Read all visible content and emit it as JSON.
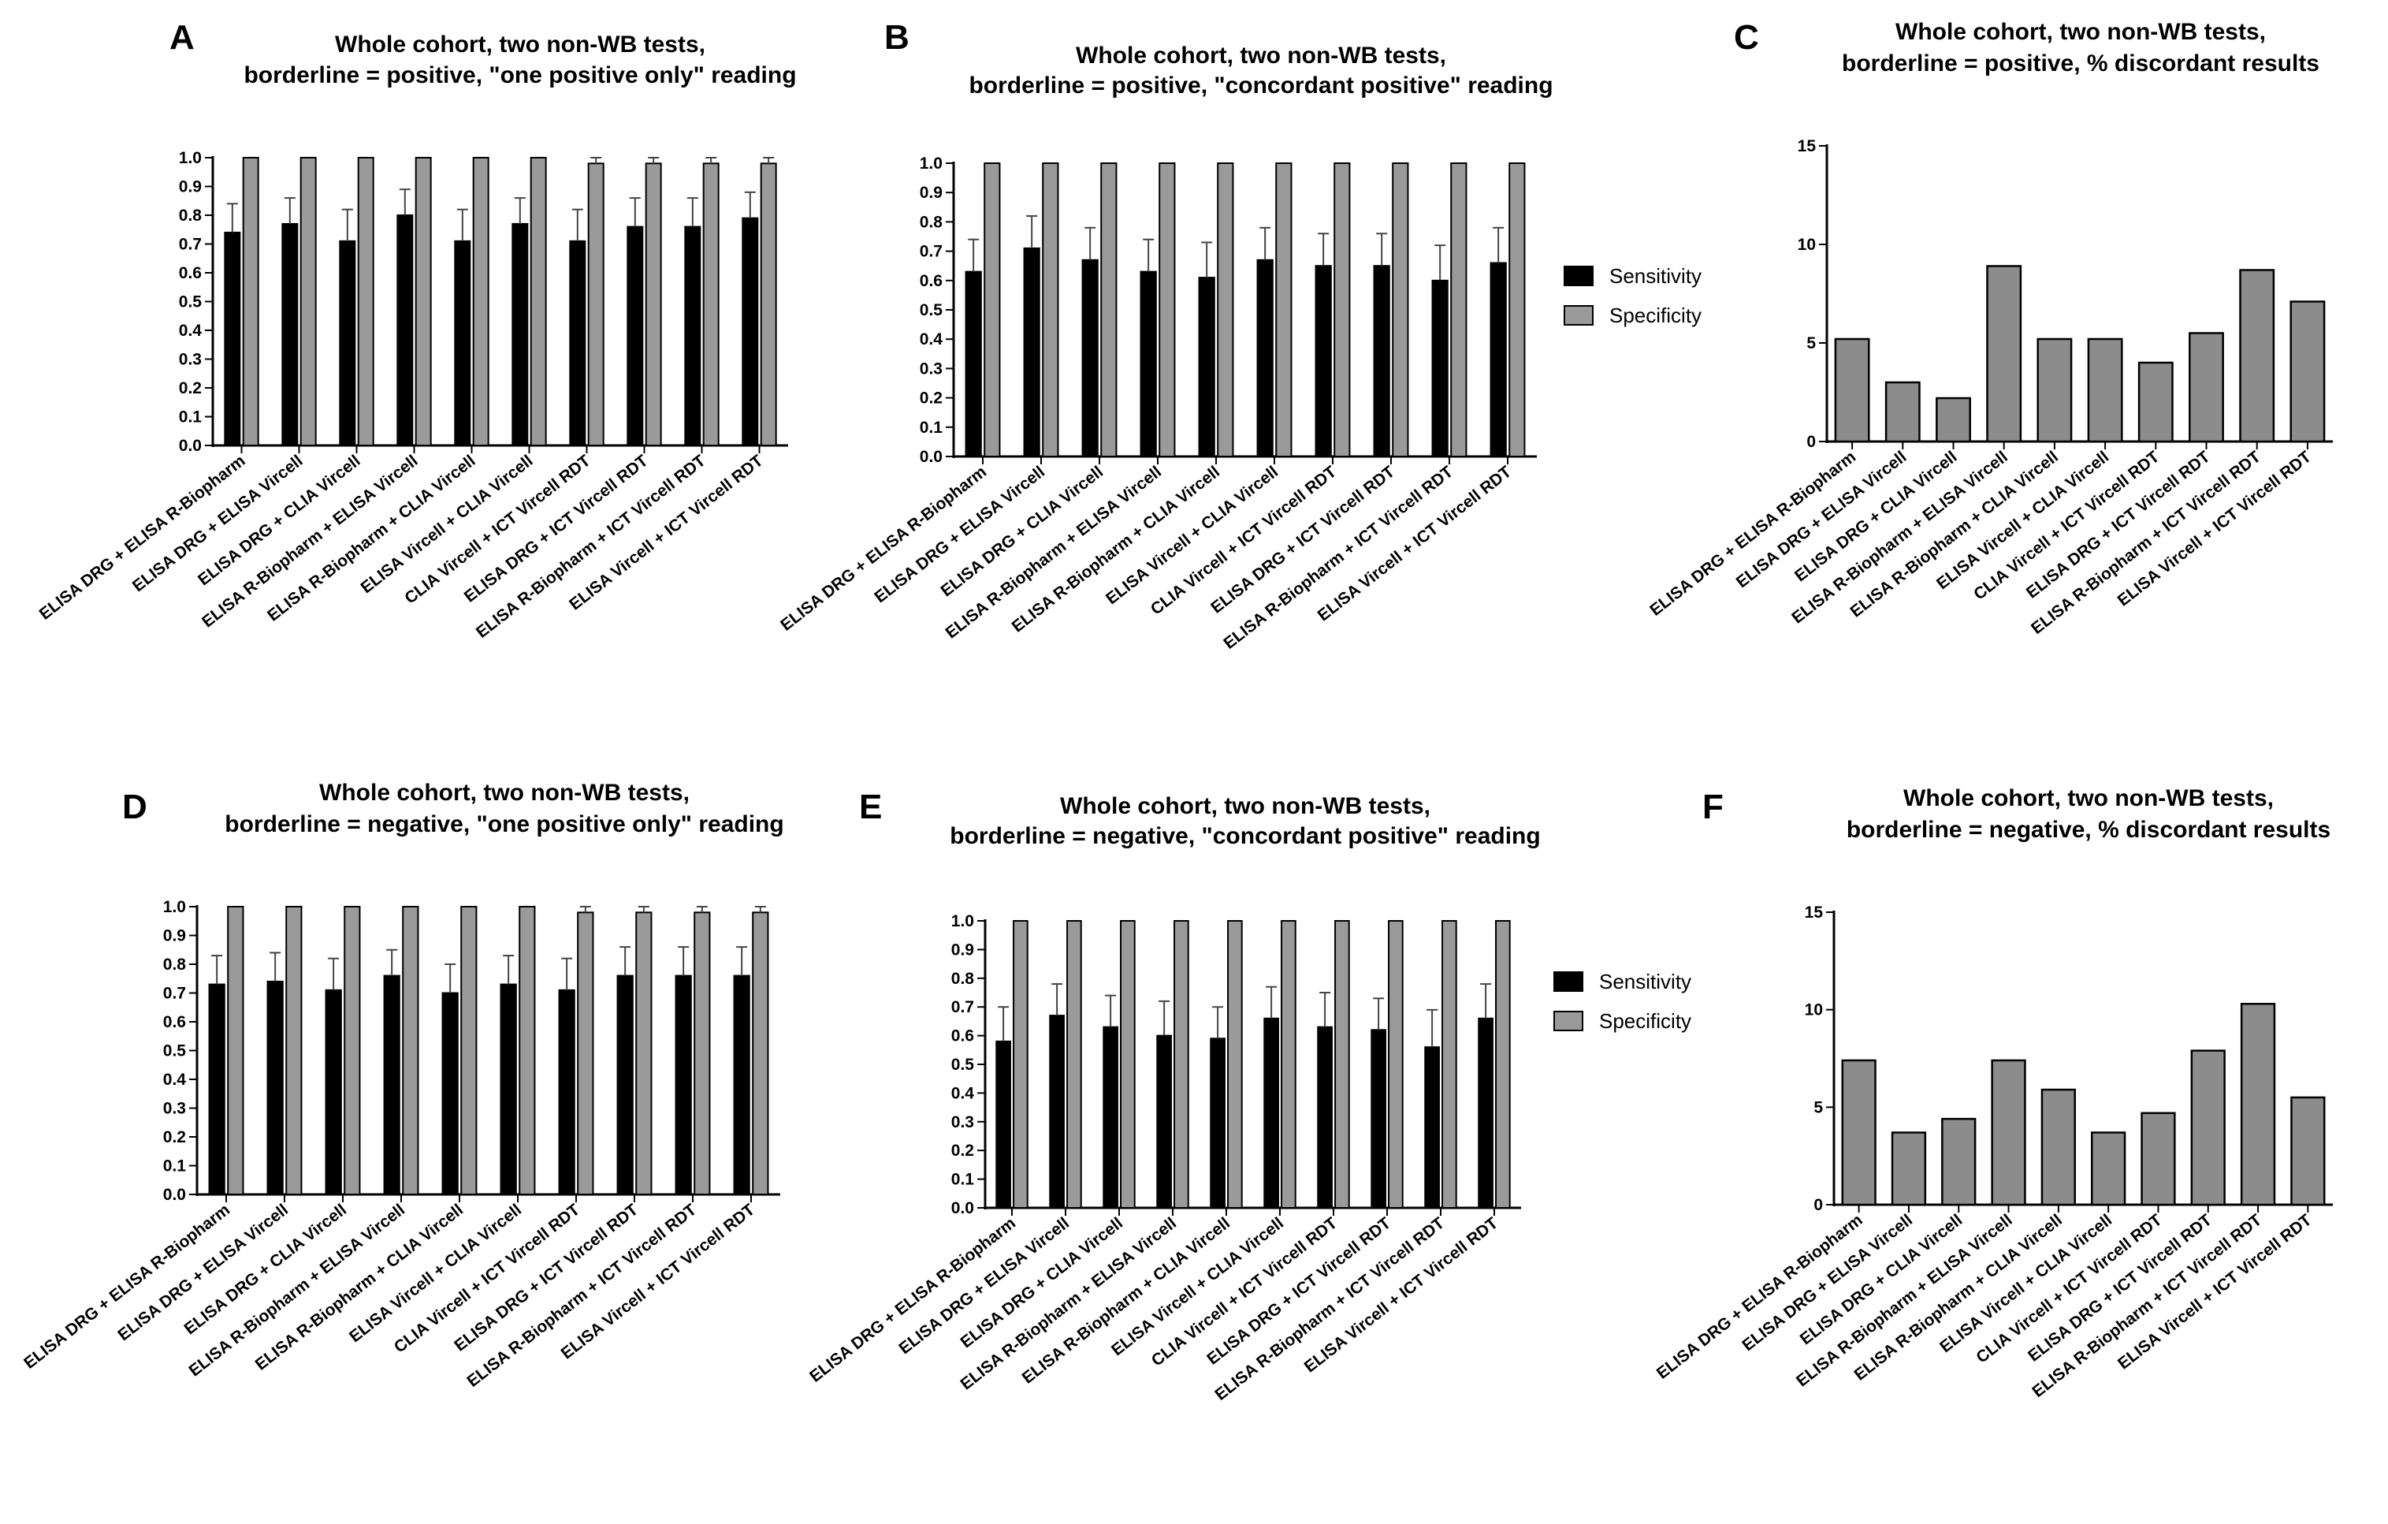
{
  "categories": [
    "ELISA DRG + ELISA R-Biopharm",
    "ELISA DRG + ELISA Vircell",
    "ELISA DRG + CLIA Vircell",
    "ELISA R-Biopharm + ELISA Vircell",
    "ELISA R-Biopharm + CLIA Vircell",
    "ELISA Vircell + CLIA Vircell",
    "CLIA Vircell + ICT Vircell RDT",
    "ELISA DRG + ICT Vircell RDT",
    "ELISA R-Biopharm + ICT Vircell RDT",
    "ELISA Vircell + ICT Vircell RDT"
  ],
  "legend": {
    "sensitivity": "Sensitivity",
    "specificity": "Specificity",
    "sensitivity_color": "#000000",
    "specificity_color": "#9a9a9a"
  },
  "colors": {
    "bar_gray": "#8c8c8c",
    "bar_stroke": "#000000"
  },
  "chart_data": [
    {
      "id": "A",
      "type": "bar",
      "letter": "A",
      "title_lines": [
        "Whole cohort, two non-WB tests,",
        "borderline = positive, \"one positive only\" reading"
      ],
      "ylim": [
        0,
        1.0
      ],
      "yticks": [
        "0.0",
        "0.1",
        "0.2",
        "0.3",
        "0.4",
        "0.5",
        "0.6",
        "0.7",
        "0.8",
        "0.9",
        "1.0"
      ],
      "series": [
        {
          "name": "Sensitivity",
          "values": [
            0.74,
            0.77,
            0.71,
            0.8,
            0.71,
            0.77,
            0.71,
            0.76,
            0.76,
            0.79
          ],
          "error": [
            0.1,
            0.09,
            0.11,
            0.09,
            0.11,
            0.09,
            0.11,
            0.1,
            0.1,
            0.09
          ]
        },
        {
          "name": "Specificity",
          "values": [
            1.0,
            1.0,
            1.0,
            1.0,
            1.0,
            1.0,
            0.98,
            0.98,
            0.98,
            0.98
          ],
          "error": [
            0,
            0,
            0,
            0,
            0,
            0,
            0.02,
            0.02,
            0.02,
            0.02
          ]
        }
      ]
    },
    {
      "id": "B",
      "type": "bar",
      "letter": "B",
      "title_lines": [
        "Whole cohort, two non-WB tests,",
        "borderline = positive, \"concordant positive\" reading"
      ],
      "ylim": [
        0,
        1.0
      ],
      "yticks": [
        "0.0",
        "0.1",
        "0.2",
        "0.3",
        "0.4",
        "0.5",
        "0.6",
        "0.7",
        "0.8",
        "0.9",
        "1.0"
      ],
      "series": [
        {
          "name": "Sensitivity",
          "values": [
            0.63,
            0.71,
            0.67,
            0.63,
            0.61,
            0.67,
            0.65,
            0.65,
            0.6,
            0.66
          ],
          "error": [
            0.11,
            0.11,
            0.11,
            0.11,
            0.12,
            0.11,
            0.11,
            0.11,
            0.12,
            0.12
          ]
        },
        {
          "name": "Specificity",
          "values": [
            1.0,
            1.0,
            1.0,
            1.0,
            1.0,
            1.0,
            1.0,
            1.0,
            1.0,
            1.0
          ],
          "error": [
            0,
            0,
            0,
            0,
            0,
            0,
            0,
            0,
            0,
            0
          ]
        }
      ]
    },
    {
      "id": "C",
      "type": "bar",
      "letter": "C",
      "title_lines": [
        "Whole cohort, two non-WB tests,",
        "borderline = positive, % discordant results"
      ],
      "ylim": [
        0,
        15
      ],
      "yticks": [
        "0",
        "5",
        "10",
        "15"
      ],
      "series": [
        {
          "name": "% discordant",
          "values": [
            5.2,
            3.0,
            2.2,
            8.9,
            5.2,
            5.2,
            4.0,
            5.5,
            8.7,
            7.1
          ]
        }
      ]
    },
    {
      "id": "D",
      "type": "bar",
      "letter": "D",
      "title_lines": [
        "Whole cohort, two non-WB tests,",
        "borderline = negative, \"one positive only\" reading"
      ],
      "ylim": [
        0,
        1.0
      ],
      "yticks": [
        "0.0",
        "0.1",
        "0.2",
        "0.3",
        "0.4",
        "0.5",
        "0.6",
        "0.7",
        "0.8",
        "0.9",
        "1.0"
      ],
      "series": [
        {
          "name": "Sensitivity",
          "values": [
            0.73,
            0.74,
            0.71,
            0.76,
            0.7,
            0.73,
            0.71,
            0.76,
            0.76,
            0.76
          ],
          "error": [
            0.1,
            0.1,
            0.11,
            0.09,
            0.1,
            0.1,
            0.11,
            0.1,
            0.1,
            0.1
          ]
        },
        {
          "name": "Specificity",
          "values": [
            1.0,
            1.0,
            1.0,
            1.0,
            1.0,
            1.0,
            0.98,
            0.98,
            0.98,
            0.98
          ],
          "error": [
            0,
            0,
            0,
            0,
            0,
            0,
            0.02,
            0.02,
            0.02,
            0.02
          ]
        }
      ]
    },
    {
      "id": "E",
      "type": "bar",
      "letter": "E",
      "title_lines": [
        "Whole cohort, two non-WB tests,",
        "borderline = negative, \"concordant positive\" reading"
      ],
      "ylim": [
        0,
        1.0
      ],
      "yticks": [
        "0.0",
        "0.1",
        "0.2",
        "0.3",
        "0.4",
        "0.5",
        "0.6",
        "0.7",
        "0.8",
        "0.9",
        "1.0"
      ],
      "series": [
        {
          "name": "Sensitivity",
          "values": [
            0.58,
            0.67,
            0.63,
            0.6,
            0.59,
            0.66,
            0.63,
            0.62,
            0.56,
            0.66
          ],
          "error": [
            0.12,
            0.11,
            0.11,
            0.12,
            0.11,
            0.11,
            0.12,
            0.11,
            0.13,
            0.12
          ]
        },
        {
          "name": "Specificity",
          "values": [
            1.0,
            1.0,
            1.0,
            1.0,
            1.0,
            1.0,
            1.0,
            1.0,
            1.0,
            1.0
          ],
          "error": [
            0,
            0,
            0,
            0,
            0,
            0,
            0,
            0,
            0,
            0
          ]
        }
      ]
    },
    {
      "id": "F",
      "type": "bar",
      "letter": "F",
      "title_lines": [
        "Whole cohort, two non-WB tests,",
        "borderline = negative, % discordant results"
      ],
      "ylim": [
        0,
        15
      ],
      "yticks": [
        "0",
        "5",
        "10",
        "15"
      ],
      "series": [
        {
          "name": "% discordant",
          "values": [
            7.4,
            3.7,
            4.4,
            7.4,
            5.9,
            3.7,
            4.7,
            7.9,
            10.3,
            5.5
          ]
        }
      ]
    }
  ]
}
